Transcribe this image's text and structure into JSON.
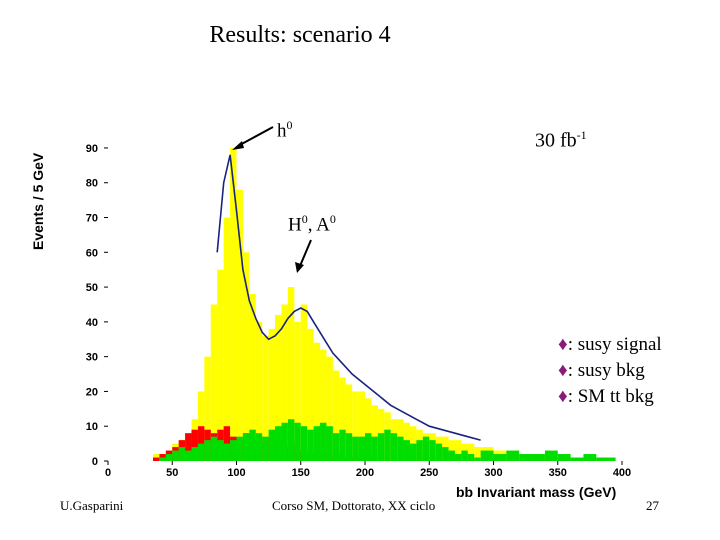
{
  "slide": {
    "title": "Results: scenario 4",
    "footer_author": "U.Gasparini",
    "footer_course": "Corso SM, Dottorato, XX ciclo",
    "page_number": "27"
  },
  "annotations": {
    "luminosity": "30 fb",
    "luminosity_sup": "-1",
    "h0_label": "h",
    "h0_sup": "0",
    "HA_label_H": "H",
    "HA_sup1": "0",
    "HA_sep": ", A",
    "HA_sup2": "0"
  },
  "legend": {
    "marker": "♦",
    "items": [
      ": susy signal",
      ": susy bkg",
      ": SM tt bkg"
    ]
  },
  "colors": {
    "susy_signal": "#ffff00",
    "susy_bkg": "#ff0000",
    "sm_tt_bkg": "#00dd00",
    "fit": "#1a237e",
    "marker": "#8a1a7a"
  },
  "chart_data": {
    "type": "bar",
    "stacked_histogram": true,
    "xlabel": "bb Invariant mass (GeV)",
    "ylabel": "Events / 5 GeV",
    "xlim": [
      0,
      400
    ],
    "ylim": [
      0,
      92
    ],
    "x_ticks": [
      0,
      50,
      100,
      150,
      200,
      250,
      300,
      350,
      400
    ],
    "y_ticks": [
      0,
      10,
      20,
      30,
      40,
      50,
      60,
      70,
      80,
      90
    ],
    "bin_width": 5,
    "bin_starts": [
      35,
      40,
      45,
      50,
      55,
      60,
      65,
      70,
      75,
      80,
      85,
      90,
      95,
      100,
      105,
      110,
      115,
      120,
      125,
      130,
      135,
      140,
      145,
      150,
      155,
      160,
      165,
      170,
      175,
      180,
      185,
      190,
      195,
      200,
      205,
      210,
      215,
      220,
      225,
      230,
      235,
      240,
      245,
      250,
      255,
      260,
      265,
      270,
      275,
      280,
      285,
      290,
      300,
      310,
      320,
      330,
      340,
      350,
      360,
      370,
      380,
      390
    ],
    "series": [
      {
        "name": "susy signal",
        "values": [
          2,
          2,
          3,
          5,
          6,
          8,
          12,
          20,
          30,
          45,
          55,
          70,
          90,
          78,
          60,
          48,
          40,
          36,
          38,
          42,
          45,
          50,
          40,
          45,
          38,
          34,
          32,
          30,
          26,
          24,
          22,
          20,
          20,
          18,
          16,
          15,
          14,
          12,
          12,
          11,
          10,
          9,
          8,
          8,
          7,
          7,
          6,
          6,
          5,
          5,
          4,
          4,
          3,
          3,
          2,
          2,
          2,
          1,
          1,
          1,
          1,
          1
        ]
      },
      {
        "name": "susy bkg",
        "values": [
          1,
          2,
          3,
          4,
          6,
          8,
          9,
          10,
          9,
          8,
          9,
          10,
          7,
          6,
          8,
          6,
          7,
          5,
          7,
          6,
          4,
          5,
          3,
          3,
          2,
          2,
          2,
          1,
          2,
          1,
          1,
          1,
          1,
          1,
          0,
          0,
          0,
          0,
          0,
          0,
          0,
          0,
          0,
          0,
          0,
          0,
          0,
          0,
          0,
          0,
          0,
          0,
          0,
          0,
          0,
          0,
          0,
          0,
          0,
          0,
          0,
          0
        ]
      },
      {
        "name": "SM tt bkg",
        "values": [
          0,
          1,
          2,
          3,
          4,
          3,
          4,
          5,
          6,
          7,
          6,
          5,
          6,
          7,
          8,
          9,
          8,
          7,
          9,
          10,
          11,
          12,
          11,
          10,
          9,
          10,
          11,
          10,
          8,
          9,
          8,
          7,
          7,
          8,
          7,
          8,
          9,
          8,
          7,
          6,
          5,
          6,
          7,
          6,
          5,
          4,
          3,
          2,
          3,
          2,
          1,
          3,
          2,
          3,
          2,
          2,
          3,
          2,
          1,
          2,
          1,
          1
        ]
      }
    ],
    "fit_curve": {
      "x": [
        85,
        90,
        95,
        100,
        105,
        110,
        115,
        120,
        125,
        130,
        135,
        140,
        145,
        150,
        155,
        160,
        165,
        170,
        175,
        180,
        190,
        200,
        210,
        220,
        230,
        240,
        250,
        260,
        270,
        280,
        290
      ],
      "y": [
        60,
        80,
        88,
        72,
        55,
        46,
        41,
        37,
        35,
        36,
        38,
        41,
        43,
        44,
        43,
        40,
        37,
        34,
        31,
        29,
        25,
        22,
        19,
        16,
        14,
        12,
        10,
        9,
        8,
        7,
        6
      ]
    }
  }
}
